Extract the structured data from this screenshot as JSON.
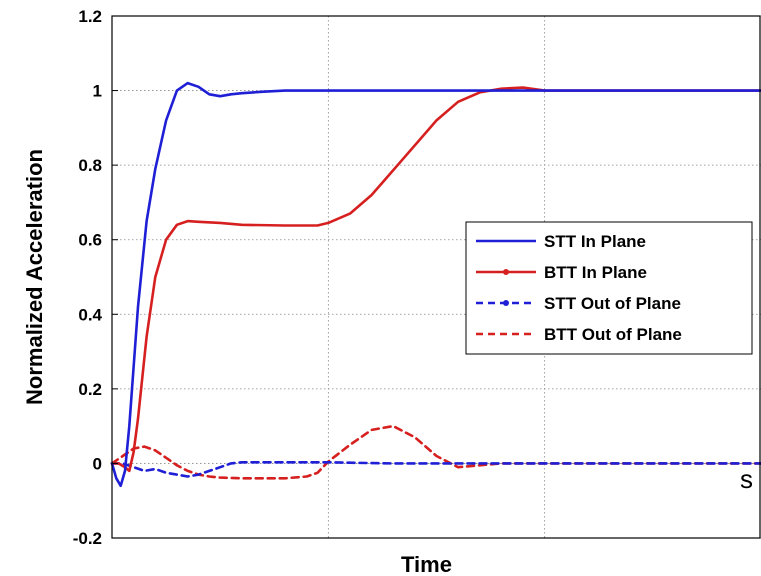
{
  "chart_data": {
    "type": "line",
    "xlabel": "Time",
    "ylabel": "Normalized Acceleration",
    "title": "",
    "xlim": [
      0,
      3
    ],
    "ylim": [
      -0.2,
      1.2
    ],
    "y_ticks": [
      "-0.2",
      "0",
      "0.2",
      "0.4",
      "0.6",
      "0.8",
      "1",
      "1.2"
    ],
    "x_ticks": [],
    "x_gridlines": [
      1,
      2
    ],
    "grid": true,
    "legend_position": "center-right",
    "series": [
      {
        "name": "STT In Plane",
        "color": "#1f1fd6",
        "style": "solid",
        "x": [
          0,
          0.02,
          0.04,
          0.06,
          0.08,
          0.12,
          0.16,
          0.2,
          0.25,
          0.3,
          0.35,
          0.4,
          0.45,
          0.5,
          0.55,
          0.6,
          0.7,
          0.8,
          0.9,
          1.0,
          1.2,
          1.5,
          2.0,
          2.5,
          3.0
        ],
        "y": [
          0.0,
          -0.04,
          -0.06,
          -0.02,
          0.1,
          0.42,
          0.65,
          0.79,
          0.92,
          1.0,
          1.02,
          1.01,
          0.99,
          0.985,
          0.99,
          0.993,
          0.997,
          1.0,
          1.0,
          1.0,
          1.0,
          1.0,
          1.0,
          1.0,
          1.0
        ]
      },
      {
        "name": "BTT In Plane",
        "color": "#d62020",
        "style": "solid",
        "x": [
          0,
          0.03,
          0.06,
          0.08,
          0.1,
          0.12,
          0.16,
          0.2,
          0.25,
          0.3,
          0.35,
          0.4,
          0.5,
          0.6,
          0.8,
          0.95,
          1.0,
          1.1,
          1.2,
          1.35,
          1.5,
          1.6,
          1.7,
          1.8,
          1.9,
          2.0,
          2.5,
          3.0
        ],
        "y": [
          0.0,
          0.0,
          -0.01,
          -0.02,
          0.03,
          0.12,
          0.34,
          0.5,
          0.6,
          0.64,
          0.65,
          0.648,
          0.645,
          0.64,
          0.638,
          0.638,
          0.645,
          0.67,
          0.72,
          0.82,
          0.92,
          0.97,
          0.995,
          1.005,
          1.008,
          1.0,
          1.0,
          1.0
        ]
      },
      {
        "name": "STT Out of Plane",
        "color": "#1f1fd6",
        "style": "dashed",
        "x": [
          0,
          0.05,
          0.1,
          0.15,
          0.2,
          0.25,
          0.3,
          0.35,
          0.4,
          0.45,
          0.5,
          0.55,
          0.6,
          0.7,
          0.8,
          0.9,
          1.0,
          1.1,
          1.2,
          1.3,
          1.5,
          2.0,
          2.5,
          3.0
        ],
        "y": [
          0.0,
          0.0,
          -0.01,
          -0.02,
          -0.015,
          -0.025,
          -0.03,
          -0.035,
          -0.03,
          -0.02,
          -0.01,
          0.0,
          0.003,
          0.003,
          0.003,
          0.003,
          0.003,
          0.002,
          0.001,
          0.0,
          0.0,
          0.0,
          0.0,
          0.0
        ]
      },
      {
        "name": "BTT Out of Plane",
        "color": "#d62020",
        "style": "dashed",
        "x": [
          0,
          0.05,
          0.1,
          0.15,
          0.2,
          0.25,
          0.3,
          0.35,
          0.4,
          0.45,
          0.5,
          0.6,
          0.7,
          0.8,
          0.9,
          0.95,
          1.0,
          1.1,
          1.2,
          1.3,
          1.4,
          1.5,
          1.6,
          1.7,
          1.8,
          1.9,
          2.0,
          2.5,
          3.0
        ],
        "y": [
          0.0,
          0.02,
          0.04,
          0.045,
          0.035,
          0.015,
          -0.005,
          -0.02,
          -0.03,
          -0.035,
          -0.038,
          -0.04,
          -0.04,
          -0.04,
          -0.035,
          -0.025,
          0.005,
          0.05,
          0.09,
          0.1,
          0.07,
          0.02,
          -0.01,
          -0.005,
          0.0,
          0.0,
          0.0,
          0.0,
          0.0
        ]
      }
    ],
    "legend": [
      "STT In Plane",
      "BTT In Plane",
      "STT Out of Plane",
      "BTT Out of Plane"
    ]
  },
  "stray_text": "s"
}
